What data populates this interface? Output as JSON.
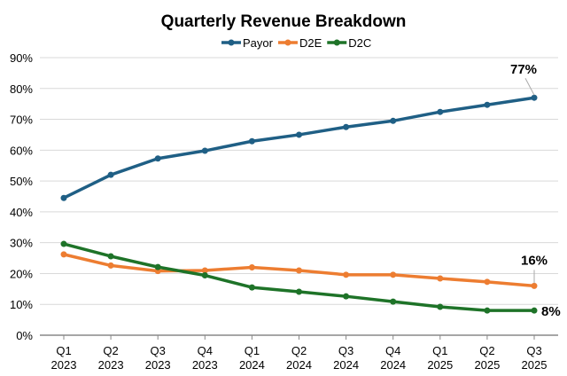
{
  "chart_data": {
    "type": "line",
    "title": "Quarterly Revenue Breakdown",
    "xlabel": "",
    "ylabel": "",
    "categories": [
      [
        "Q1",
        "2023"
      ],
      [
        "Q2",
        "2023"
      ],
      [
        "Q3",
        "2023"
      ],
      [
        "Q4",
        "2023"
      ],
      [
        "Q1",
        "2024"
      ],
      [
        "Q2",
        "2024"
      ],
      [
        "Q3",
        "2024"
      ],
      [
        "Q4",
        "2024"
      ],
      [
        "Q1",
        "2025"
      ],
      [
        "Q2",
        "2025"
      ],
      [
        "Q3",
        "2025"
      ]
    ],
    "ylim": [
      0,
      90
    ],
    "yticks": [
      "0%",
      "10%",
      "20%",
      "30%",
      "40%",
      "50%",
      "60%",
      "70%",
      "80%",
      "90%"
    ],
    "grid": true,
    "legend_position": "top",
    "series": [
      {
        "name": "Payor",
        "color": "#1f5f85",
        "values": [
          44.5,
          52,
          57.3,
          59.8,
          62.9,
          65,
          67.5,
          69.5,
          72.4,
          74.7,
          77
        ],
        "end_label": "77%"
      },
      {
        "name": "D2E",
        "color": "#ed7d31",
        "values": [
          26.2,
          22.6,
          20.8,
          21,
          22,
          21,
          19.6,
          19.6,
          18.4,
          17.3,
          16
        ],
        "end_label": "16%"
      },
      {
        "name": "D2C",
        "color": "#1e7328",
        "values": [
          29.6,
          25.6,
          22.1,
          19.4,
          15.5,
          14.1,
          12.6,
          10.9,
          9.2,
          8,
          8
        ],
        "end_label": "8%"
      }
    ]
  }
}
